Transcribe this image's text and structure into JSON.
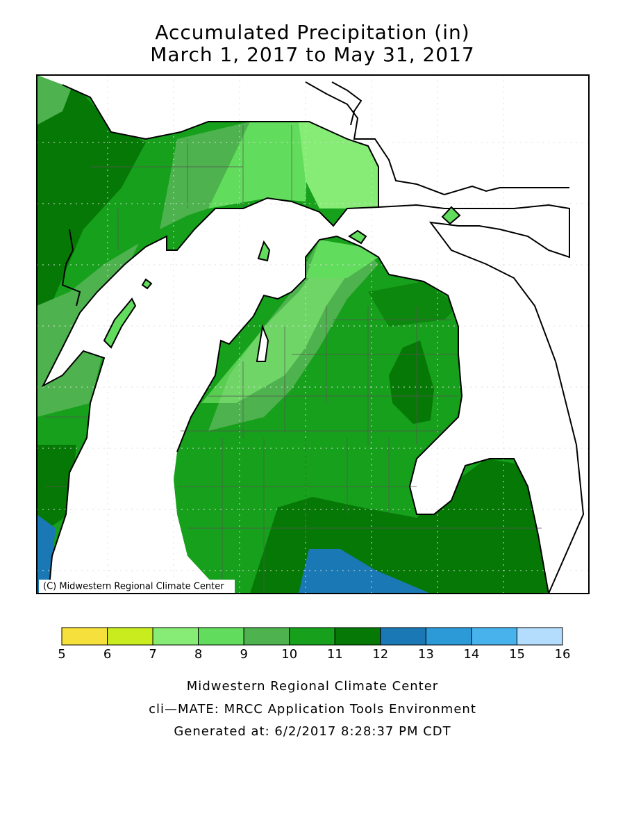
{
  "title": [
    "Accumulated Precipitation (in)",
    "March 1, 2017 to May 31, 2017"
  ],
  "map": {
    "credit": "(C) Midwestern Regional Climate Center"
  },
  "legend": {
    "bins": [
      5,
      6,
      7,
      8,
      9,
      10,
      11,
      12,
      13,
      14,
      15,
      16
    ],
    "colors": [
      "#f5e03c",
      "#c8ec1e",
      "#86ec76",
      "#62dc5c",
      "#4eb24e",
      "#16a01b",
      "#067806",
      "#1a78b4",
      "#2d9ad8",
      "#48b2ec",
      "#b4dcfc"
    ]
  },
  "footer": [
    "Midwestern Regional Climate Center",
    "cli—MATE: MRCC Application Tools Environment",
    "Generated at: 6/2/2017 8:28:37 PM CDT"
  ]
}
